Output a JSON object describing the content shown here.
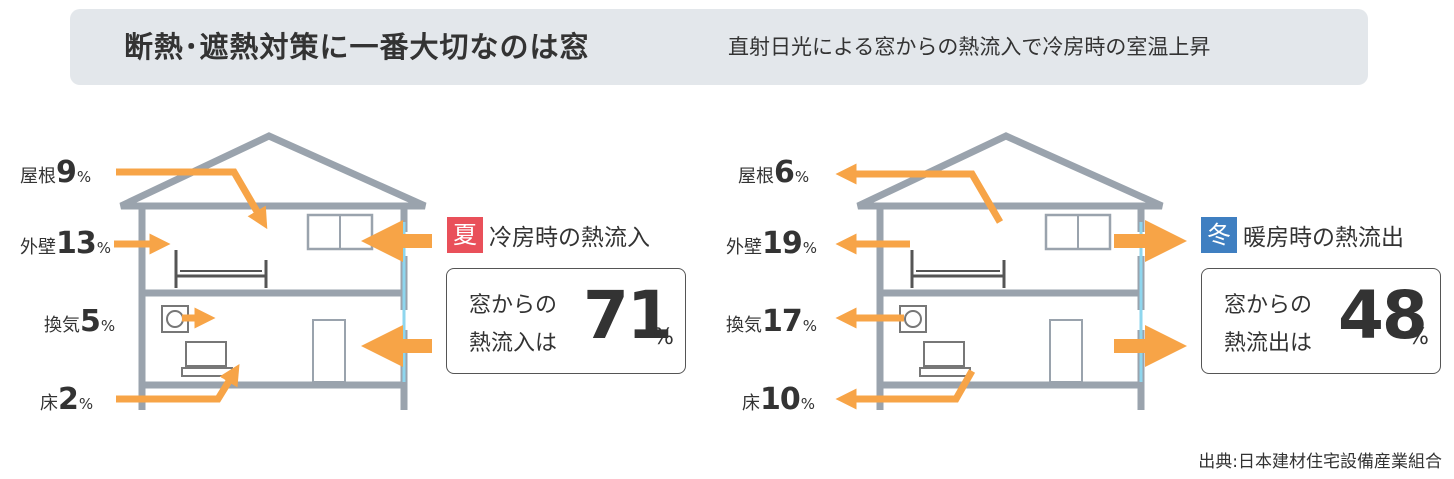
{
  "header": {
    "title": "断熱･遮熱対策に一番大切なのは窓",
    "subtitle": "直射日光による窓からの熱流入で冷房時の室温上昇"
  },
  "summer": {
    "badge": "夏",
    "badge_color": "#e9505a",
    "label": "冷房時の熱流入",
    "result_line1": "窓からの",
    "result_line2": "熱流入は",
    "result_value": "71",
    "result_unit": "%",
    "items": [
      {
        "name": "屋根",
        "value": "9",
        "unit": "%"
      },
      {
        "name": "外壁",
        "value": "13",
        "unit": "%"
      },
      {
        "name": "換気",
        "value": "5",
        "unit": "%"
      },
      {
        "name": "床",
        "value": "2",
        "unit": "%"
      }
    ]
  },
  "winter": {
    "badge": "冬",
    "badge_color": "#3f7fc1",
    "label": "暖房時の熱流出",
    "result_line1": "窓からの",
    "result_line2": "熱流出は",
    "result_value": "48",
    "result_unit": "%",
    "items": [
      {
        "name": "屋根",
        "value": "6",
        "unit": "%"
      },
      {
        "name": "外壁",
        "value": "19",
        "unit": "%"
      },
      {
        "name": "換気",
        "value": "17",
        "unit": "%"
      },
      {
        "name": "床",
        "value": "10",
        "unit": "%"
      }
    ]
  },
  "colors": {
    "arrow": "#f7a447",
    "house_line": "#9aa3ad",
    "glass": "#8ed6ee",
    "banner": "#e3e7eb"
  },
  "source": "出典:日本建材住宅設備産業組合"
}
